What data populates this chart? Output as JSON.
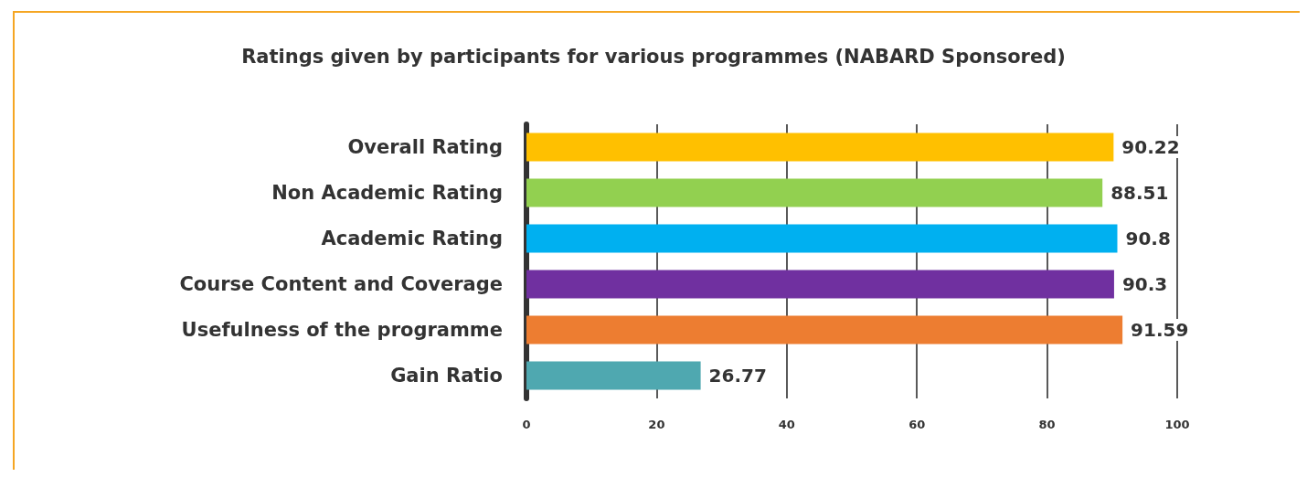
{
  "chart_data": {
    "type": "bar",
    "orientation": "horizontal",
    "title": "Ratings given by participants for various programmes (NABARD Sponsored)",
    "categories": [
      "Overall Rating",
      "Non Academic Rating",
      "Academic Rating",
      "Course Content and Coverage",
      "Usefulness of the programme",
      "Gain Ratio"
    ],
    "values": [
      90.22,
      88.51,
      90.8,
      90.3,
      91.59,
      26.77
    ],
    "colors": [
      "#ffc000",
      "#92d050",
      "#00b0f0",
      "#7030a0",
      "#ed7d31",
      "#4fa8b0"
    ],
    "xlim": [
      0,
      100
    ],
    "xticks": [
      0,
      20,
      40,
      60,
      80,
      100
    ],
    "grid": "x",
    "data_labels": true
  }
}
